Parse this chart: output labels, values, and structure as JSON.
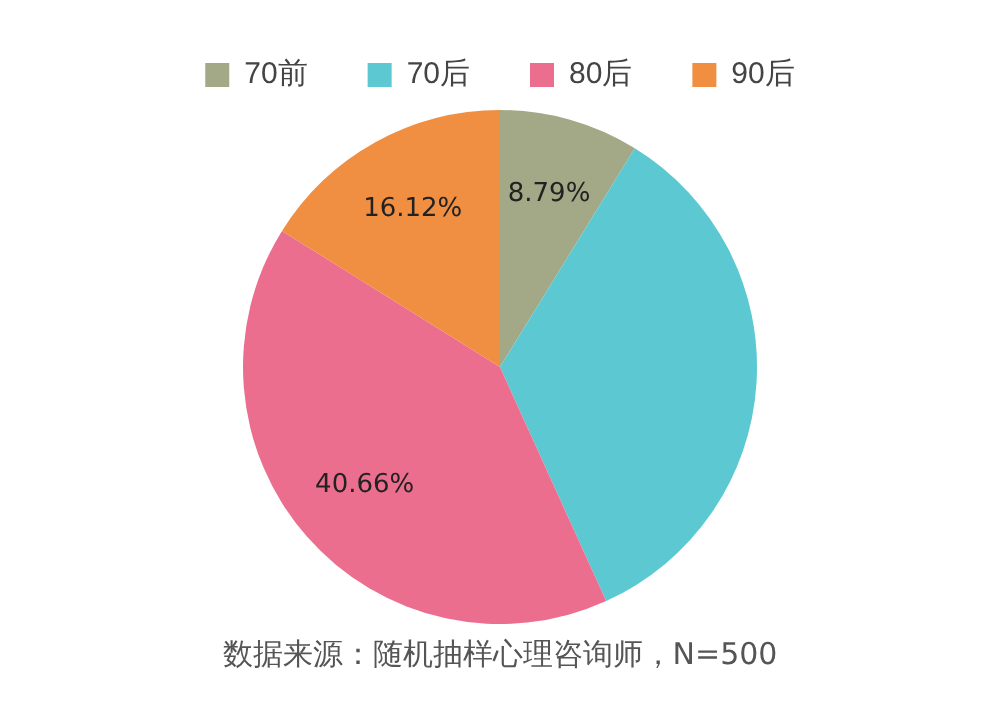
{
  "chart_data": {
    "type": "pie",
    "categories": [
      "70前",
      "70后",
      "80后",
      "90后"
    ],
    "values": [
      8.79,
      34.43,
      40.66,
      16.12
    ],
    "colors": [
      "#a3a986",
      "#5bc8d2",
      "#ec6e8e",
      "#f08f42"
    ],
    "value_labels": [
      "8.79%",
      null,
      "40.66%",
      "16.12%"
    ],
    "legend": "top",
    "annotations": [
      "数据来源：随机抽样心理咨询师，N=500"
    ]
  }
}
